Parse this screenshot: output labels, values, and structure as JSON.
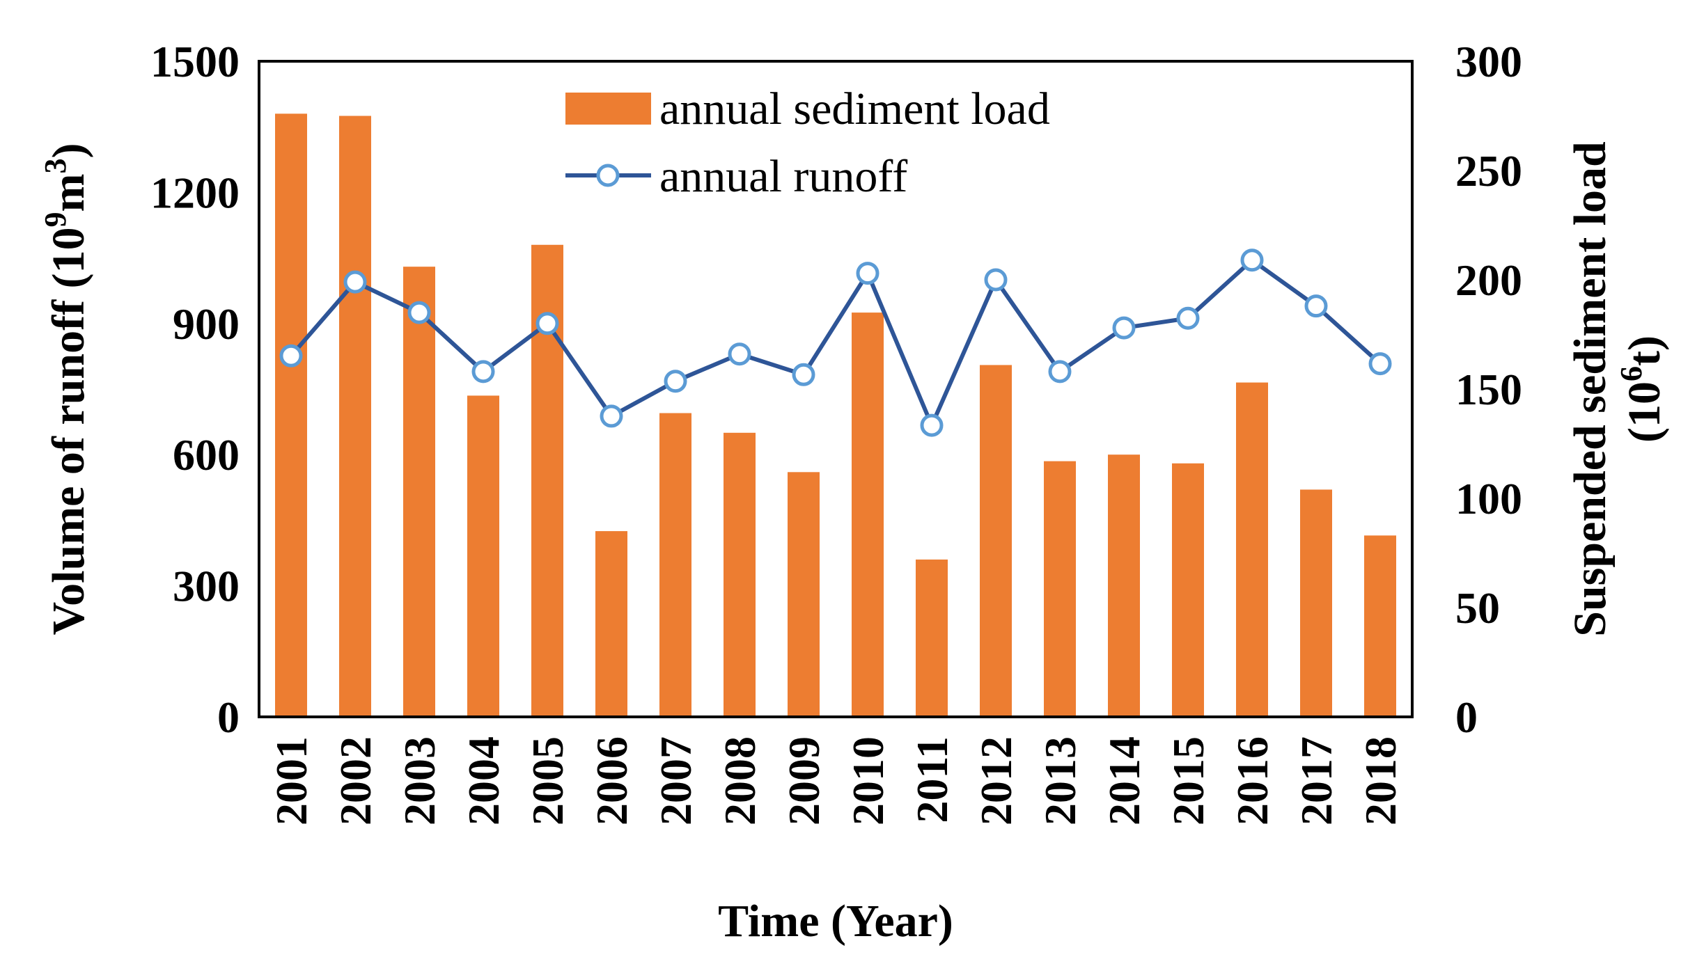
{
  "chart_data": {
    "type": "bar+line",
    "title": "",
    "xlabel": "Time (Year)",
    "ylabel_left": {
      "text": "Volume of runoff (10",
      "sup": "9",
      "mid": "m",
      "sup2": "3",
      "end": ")"
    },
    "ylabel_right": {
      "line1": "Suspended sediment load",
      "line2_pre": "(10",
      "line2_sup": "6",
      "line2_post": "t)"
    },
    "categories": [
      "2001",
      "2002",
      "2003",
      "2004",
      "2005",
      "2006",
      "2007",
      "2008",
      "2009",
      "2010",
      "2011",
      "2012",
      "2013",
      "2014",
      "2015",
      "2016",
      "2017",
      "2018"
    ],
    "series": [
      {
        "name": "annual sediment load",
        "kind": "bar",
        "axis": "right",
        "color": "#ED7D31",
        "values": [
          276,
          275,
          206,
          147,
          216,
          85,
          139,
          130,
          112,
          185,
          72,
          161,
          117,
          120,
          116,
          153,
          104,
          83
        ]
      },
      {
        "name": "annual runoff",
        "kind": "line",
        "axis": "left",
        "color": "#2E5597",
        "marker_color": "#5B9BD5",
        "values": [
          826,
          995,
          925,
          790,
          900,
          688,
          768,
          830,
          783,
          1015,
          667,
          1000,
          790,
          890,
          912,
          1045,
          940,
          808
        ]
      }
    ],
    "ylim_left": [
      0,
      1500
    ],
    "yticks_left": [
      "0",
      "300",
      "600",
      "900",
      "1200",
      "1500"
    ],
    "ylim_right": [
      0,
      300
    ],
    "yticks_right": [
      "0",
      "50",
      "100",
      "150",
      "200",
      "250",
      "300"
    ],
    "legend_position": "top-center",
    "grid": false
  }
}
